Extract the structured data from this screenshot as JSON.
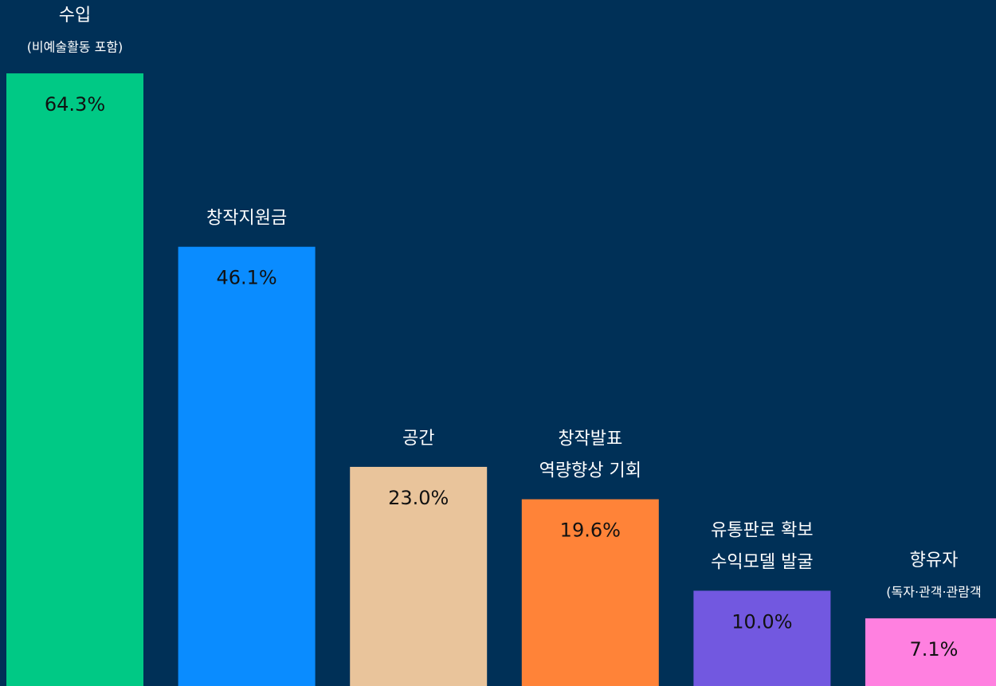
{
  "chart_data": {
    "type": "bar",
    "categories": [
      [
        "수입"
      ],
      [
        "창작지원금"
      ],
      [
        "공간"
      ],
      [
        "창작발표",
        "역량향상 기회"
      ],
      [
        "유통판로 확보",
        "수익모델 발굴"
      ],
      [
        "향유자"
      ]
    ],
    "category_notes": [
      "(비예술활동 포함)",
      null,
      null,
      null,
      null,
      "(독자·관객·관람객"
    ],
    "values": [
      64.3,
      46.1,
      23.0,
      19.6,
      10.0,
      7.1
    ],
    "value_labels": [
      "64.3%",
      "46.1%",
      "23.0%",
      "19.6%",
      "10.0%",
      "7.1%"
    ],
    "colors": [
      "#00c985",
      "#0a8cff",
      "#e9c49b",
      "#ff8338",
      "#7258e0",
      "#ff80e0"
    ],
    "ylim": [
      0,
      72
    ]
  }
}
